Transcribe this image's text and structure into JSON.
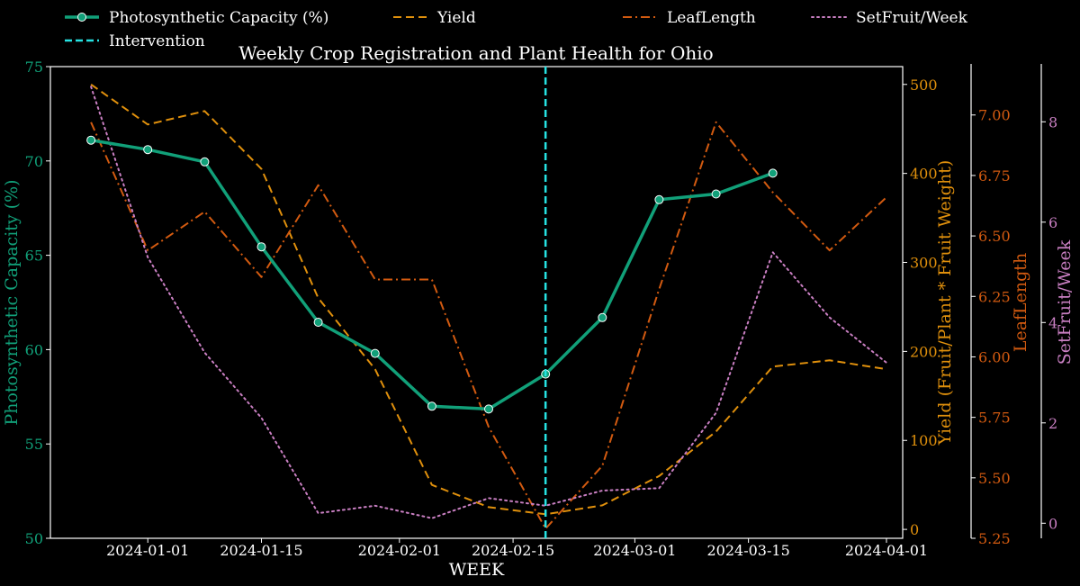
{
  "chart_data": {
    "type": "line",
    "title": "Weekly Crop Registration and Plant Health for Ohio",
    "xlabel": "WEEK",
    "x_tick_labels": [
      "2024-01-01",
      "2024-01-15",
      "2024-02-01",
      "2024-02-15",
      "2024-03-01",
      "2024-03-15",
      "2024-04-01"
    ],
    "x": [
      "2023-12-25",
      "2024-01-01",
      "2024-01-08",
      "2024-01-15",
      "2024-01-22",
      "2024-01-29",
      "2024-02-05",
      "2024-02-12",
      "2024-02-19",
      "2024-02-26",
      "2024-03-04",
      "2024-03-11",
      "2024-03-18",
      "2024-03-25",
      "2024-04-01"
    ],
    "xlim": [
      "2023-12-20",
      "2024-04-03"
    ],
    "grid": false,
    "legend_position": "top",
    "series": [
      {
        "name": "Photosynthetic Capacity (%)",
        "axis": "left",
        "style": "solid-markers",
        "color": "#11a079",
        "values": [
          71.1,
          70.6,
          69.95,
          65.45,
          61.45,
          59.8,
          57.0,
          56.85,
          58.7,
          61.7,
          67.95,
          68.25,
          69.35,
          null,
          null
        ]
      },
      {
        "name": "Yield",
        "axis": "right1",
        "style": "dashed",
        "color": "#e0900c",
        "values": [
          500,
          455,
          470,
          405,
          260,
          180,
          50,
          25,
          17,
          27,
          60,
          110,
          183,
          190,
          180
        ]
      },
      {
        "name": "LeafLength",
        "axis": "right2",
        "style": "dashdot",
        "color": "#d25a10",
        "values": [
          6.97,
          6.44,
          6.6,
          6.33,
          6.71,
          6.32,
          6.32,
          5.71,
          5.29,
          5.55,
          6.28,
          6.97,
          6.68,
          6.44,
          6.66
        ]
      },
      {
        "name": "SetFruit/Week",
        "axis": "right3",
        "style": "dotted",
        "color": "#c97fc2",
        "values": [
          8.7,
          5.3,
          3.4,
          2.1,
          0.2,
          0.35,
          0.1,
          0.5,
          0.35,
          0.65,
          0.7,
          2.2,
          5.4,
          4.1,
          3.2
        ]
      }
    ],
    "intervention": {
      "name": "Intervention",
      "date": "2024-02-19",
      "color": "#26e3e3"
    },
    "axes": {
      "left": {
        "label": "Photosynthetic Capacity (%)",
        "ylim": [
          50,
          75
        ],
        "ticks": [
          50,
          55,
          60,
          65,
          70,
          75
        ],
        "color": "#11a079"
      },
      "right1": {
        "label": "Yield (Fruit/Plant * Fruit Weight)",
        "ylim": [
          -10,
          520
        ],
        "ticks": [
          0,
          100,
          200,
          300,
          400,
          500
        ],
        "color": "#e0900c"
      },
      "right2": {
        "label": "LeafLength",
        "ylim": [
          5.25,
          7.2
        ],
        "ticks": [
          "5.25",
          "5.50",
          "5.75",
          "6.00",
          "6.25",
          "6.50",
          "6.75",
          "7.00"
        ],
        "color": "#d25a10"
      },
      "right3": {
        "label": "SetFruit/Week",
        "ylim": [
          -0.3,
          9.1
        ],
        "ticks": [
          0,
          2,
          4,
          6,
          8
        ],
        "color": "#c97fc2"
      }
    }
  }
}
